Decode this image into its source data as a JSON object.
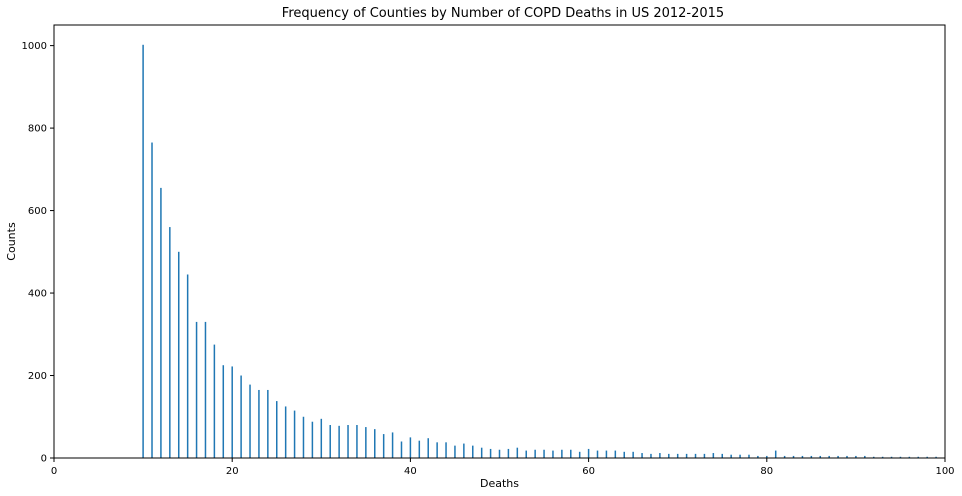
{
  "chart_data": {
    "type": "bar",
    "title": "Frequency of Counties by Number of COPD Deaths in US 2012-2015",
    "xlabel": "Deaths",
    "ylabel": "Counts",
    "xlim": [
      0,
      100
    ],
    "ylim": [
      0,
      1050
    ],
    "x_ticks": [
      0,
      20,
      40,
      60,
      80,
      100
    ],
    "y_ticks": [
      0,
      200,
      400,
      600,
      800,
      1000
    ],
    "grid": false,
    "bar_color": "#1f77b4",
    "x": [
      10,
      11,
      12,
      13,
      14,
      15,
      16,
      17,
      18,
      19,
      20,
      21,
      22,
      23,
      24,
      25,
      26,
      27,
      28,
      29,
      30,
      31,
      32,
      33,
      34,
      35,
      36,
      37,
      38,
      39,
      40,
      41,
      42,
      43,
      44,
      45,
      46,
      47,
      48,
      49,
      50,
      51,
      52,
      53,
      54,
      55,
      56,
      57,
      58,
      59,
      60,
      61,
      62,
      63,
      64,
      65,
      66,
      67,
      68,
      69,
      70,
      71,
      72,
      73,
      74,
      75,
      76,
      77,
      78,
      79,
      80,
      81,
      82,
      83,
      84,
      85,
      86,
      87,
      88,
      89,
      90,
      91,
      92,
      93,
      94,
      95,
      96,
      97,
      98,
      99
    ],
    "values": [
      1002,
      765,
      655,
      560,
      500,
      445,
      330,
      330,
      275,
      225,
      222,
      200,
      178,
      165,
      165,
      138,
      125,
      115,
      100,
      88,
      95,
      80,
      78,
      80,
      80,
      75,
      70,
      58,
      62,
      40,
      50,
      42,
      48,
      38,
      38,
      30,
      35,
      30,
      25,
      22,
      20,
      22,
      25,
      18,
      20,
      20,
      18,
      20,
      20,
      15,
      22,
      18,
      18,
      18,
      15,
      15,
      12,
      10,
      12,
      10,
      10,
      10,
      10,
      10,
      12,
      10,
      8,
      8,
      8,
      5,
      5,
      18,
      5,
      5,
      5,
      5,
      5,
      5,
      5,
      5,
      5,
      5,
      3,
      3,
      3,
      3,
      3,
      3,
      3,
      3
    ]
  }
}
